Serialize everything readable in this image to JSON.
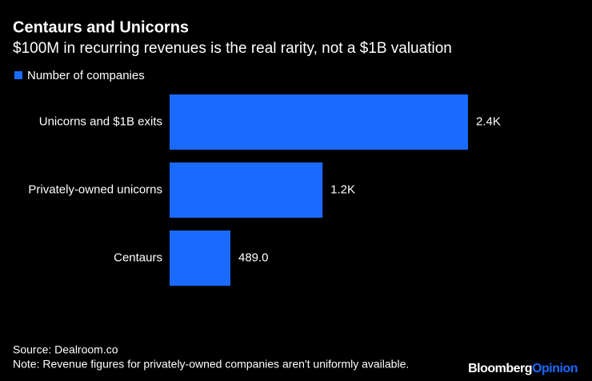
{
  "chart_data": {
    "type": "hbar",
    "title": "Centaurs and Unicorns",
    "subtitle": "$100M in recurring revenues is the real rarity, not a $1B valuation",
    "categories": [
      "Unicorns and $1B exits",
      "Privately-owned unicorns",
      "Centaurs"
    ],
    "series": [
      {
        "name": "Number of companies",
        "color": "#1a6aff",
        "values": [
          2400,
          1230,
          489
        ],
        "value_labels": [
          "2.4K",
          "1.2K",
          "489.0"
        ]
      }
    ],
    "xlim": [
      0,
      2400
    ],
    "source": "Source: Dealroom.co",
    "note": "Note: Revenue figures for privately-owned companies aren't uniformly available.",
    "brand": {
      "name": "Bloomberg",
      "section": "Opinion"
    }
  }
}
